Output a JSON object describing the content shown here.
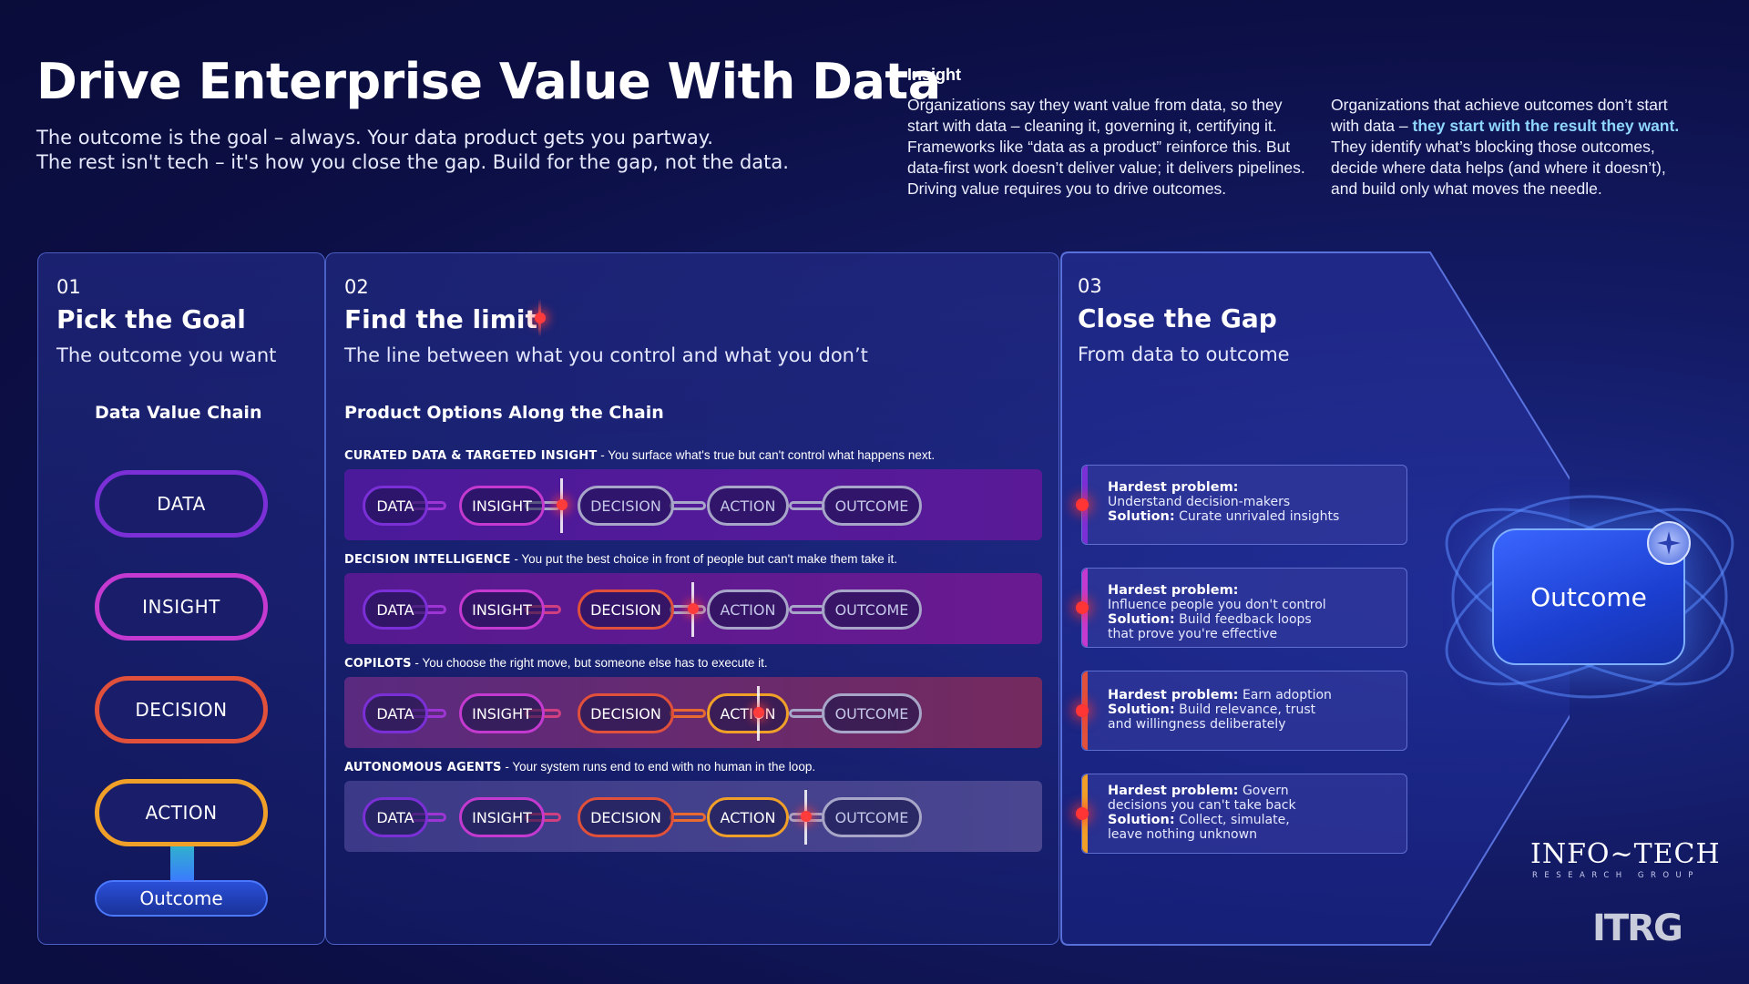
{
  "header": {
    "title": "Drive Enterprise Value With Data",
    "sub1": "The outcome is the goal – always. Your data product gets you partway.",
    "sub2": "The rest isn't tech – it's how you close the gap. Build for the gap, not the data."
  },
  "insight": {
    "title": "Insight",
    "col1": "Organizations say they want value from data, so they start with data – cleaning it, governing it, certifying it. Frameworks like “data as a product” reinforce this. But data-first work doesn’t deliver value; it delivers pipelines. Driving value requires you to drive outcomes.",
    "col2_pre": "Organizations that achieve outcomes don’t start with data – ",
    "col2_highlight": "they start with the result they want.",
    "col2_post": " They identify what’s blocking those outcomes, decide where data helps (and where it doesn’t), and build only what moves the needle."
  },
  "panel1": {
    "num": "01",
    "title": "Pick the Goal",
    "sub": "The outcome you want",
    "heading": "Data Value Chain",
    "chain": [
      "DATA",
      "INSIGHT",
      "DECISION",
      "ACTION"
    ],
    "outcome": "Outcome"
  },
  "panel2": {
    "num": "02",
    "title": "Find the limit",
    "sub": "The line between what you control and what you don’t",
    "heading": "Product Options Along the Chain",
    "rows": [
      {
        "name": "CURATED DATA & TARGETED INSIGHT",
        "desc": " - You surface what's true but can't control what happens next.",
        "pills": [
          "DATA",
          "INSIGHT",
          "DECISION",
          "ACTION",
          "OUTCOME"
        ]
      },
      {
        "name": "DECISION INTELLIGENCE",
        "desc": " - You put the best choice in front of people but can't make them take it.",
        "pills": [
          "DATA",
          "INSIGHT",
          "DECISION",
          "ACTION",
          "OUTCOME"
        ]
      },
      {
        "name": "COPILOTS",
        "desc": " - You choose the right move, but someone else has to execute it.",
        "pills": [
          "DATA",
          "INSIGHT",
          "DECISION",
          "ACTION",
          "OUTCOME"
        ]
      },
      {
        "name": "AUTONOMOUS AGENTS",
        "desc": " - Your system runs end to end with no human in the loop.",
        "pills": [
          "DATA",
          "INSIGHT",
          "DECISION",
          "ACTION",
          "OUTCOME"
        ]
      }
    ]
  },
  "panel3": {
    "num": "03",
    "title": "Close the Gap",
    "sub": "From data to outcome",
    "cards": [
      {
        "problem_label": "Hardest problem:",
        "problem": "Understand decision-makers",
        "solution_label": "Solution:",
        "solution": "Curate unrivaled insights"
      },
      {
        "problem_label": "Hardest problem:",
        "problem": "Influence people you don't control",
        "solution_label": "Solution:",
        "solution": "Build feedback loops that prove you're effective"
      },
      {
        "problem_label": "Hardest problem:",
        "problem": "Earn adoption",
        "solution_label": "Solution:",
        "solution": "Build relevance, trust and willingness deliberately"
      },
      {
        "problem_label": "Hardest problem:",
        "problem": "Govern decisions you can't take back",
        "solution_label": "Solution:",
        "solution": "Collect, simulate, leave nothing unknown"
      }
    ],
    "outcome": "Outcome"
  },
  "brand": {
    "name": "INFO~TECH",
    "tagline": "RESEARCH GROUP",
    "logo": "ITRG"
  },
  "colors": {
    "data": "#7b2fd6",
    "insight": "#c43ad0",
    "decision": "#e0503a",
    "action": "#f0a028",
    "outcome": "#a8a6c8"
  }
}
